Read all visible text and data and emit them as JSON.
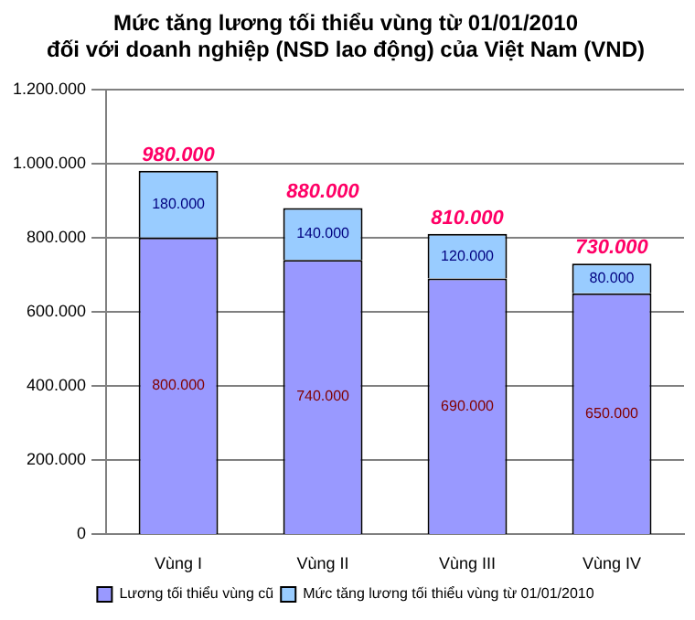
{
  "chart_data": {
    "type": "bar",
    "stacked": true,
    "title": "Mức tăng lương tối thiểu vùng từ 01/01/2010\nđối với doanh nghiệp (NSD lao động) của Việt Nam (VND)",
    "categories": [
      "Vùng I",
      "Vùng II",
      "Vùng III",
      "Vùng IV"
    ],
    "series": [
      {
        "name": "Lương tối thiểu vùng cũ",
        "color": "#9999ff",
        "values": [
          800000,
          740000,
          690000,
          650000
        ],
        "value_labels": [
          "800.000",
          "740.000",
          "690.000",
          "650.000"
        ]
      },
      {
        "name": "Mức tăng lương tối thiểu vùng từ 01/01/2010",
        "color": "#99ccff",
        "values": [
          180000,
          140000,
          120000,
          80000
        ],
        "value_labels": [
          "180.000",
          "140.000",
          "120.000",
          "80.000"
        ]
      }
    ],
    "totals": [
      "980.000",
      "880.000",
      "810.000",
      "730.000"
    ],
    "ylim": [
      0,
      1200000
    ],
    "yticks": [
      {
        "value": 0,
        "label": "0"
      },
      {
        "value": 200000,
        "label": "200.000"
      },
      {
        "value": 400000,
        "label": "400.000"
      },
      {
        "value": 600000,
        "label": "600.000"
      },
      {
        "value": 800000,
        "label": "800.000"
      },
      {
        "value": 1000000,
        "label": "1.000.000"
      },
      {
        "value": 1200000,
        "label": "1.200.000"
      }
    ],
    "grid": "y",
    "legend": "bottom"
  }
}
